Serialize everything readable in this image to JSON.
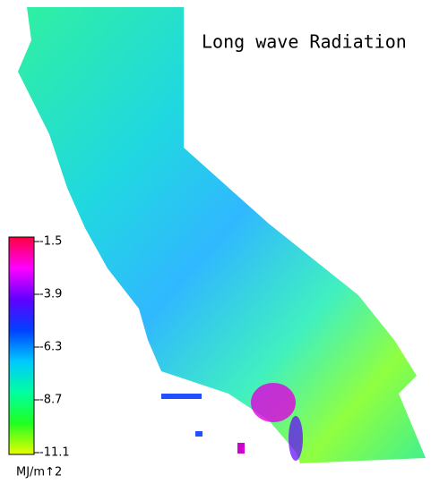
{
  "title": "Long wave Radiation",
  "colorbar": {
    "ticks": [
      -1.5,
      -3.9,
      -6.3,
      -8.7,
      -11.1
    ],
    "colors": [
      "#ff0040",
      "#ff00ff",
      "#6000ff",
      "#0040ff",
      "#00c8ff",
      "#00ffa0",
      "#20ff20",
      "#e8ff00"
    ],
    "unit": "MJ/m↑2"
  }
}
